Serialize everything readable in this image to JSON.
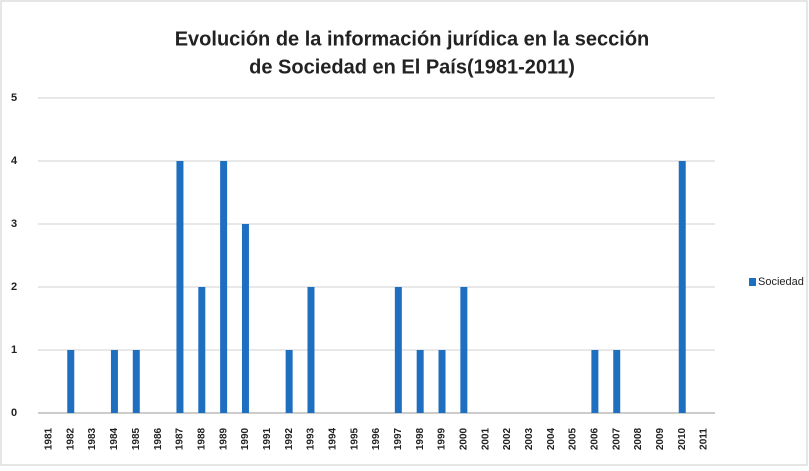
{
  "chart_data": {
    "type": "bar",
    "title": [
      "Evolución de la información jurídica en la sección",
      "de Sociedad en El País(1981-2011)"
    ],
    "categories": [
      "1981",
      "1982",
      "1983",
      "1984",
      "1985",
      "1986",
      "1987",
      "1988",
      "1989",
      "1990",
      "1991",
      "1992",
      "1993",
      "1994",
      "1995",
      "1996",
      "1997",
      "1998",
      "1999",
      "2000",
      "2001",
      "2002",
      "2003",
      "2004",
      "2005",
      "2006",
      "2007",
      "2008",
      "2009",
      "2010",
      "2011"
    ],
    "series": [
      {
        "name": "Sociedad",
        "color": "#1f6fc0",
        "values": [
          0,
          1,
          0,
          1,
          1,
          0,
          4,
          2,
          4,
          3,
          0,
          1,
          2,
          0,
          0,
          0,
          2,
          1,
          1,
          2,
          0,
          0,
          0,
          0,
          0,
          1,
          1,
          0,
          0,
          4,
          0
        ]
      }
    ],
    "ylim": [
      0,
      5
    ],
    "yticks": [
      0,
      1,
      2,
      3,
      4,
      5
    ],
    "grid": true,
    "legend": "right"
  }
}
